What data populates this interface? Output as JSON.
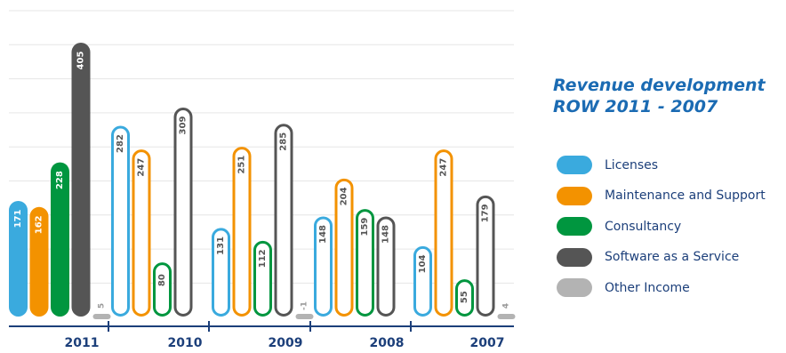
{
  "title": "Revenue development\nROW 2011 - 2007",
  "colors": {
    "licenses": "#3aaade",
    "maintenance": "#f39200",
    "consultancy": "#00963f",
    "saas": "#555555",
    "other": "#b3b3b3",
    "axis": "#1c3f7a",
    "grid": "#e6e6e6"
  },
  "legend": [
    {
      "label": "Licenses",
      "color_key": "licenses"
    },
    {
      "label": "Maintenance and Support",
      "color_key": "maintenance"
    },
    {
      "label": "Consultancy",
      "color_key": "consultancy"
    },
    {
      "label": "Software as a Service",
      "color_key": "saas"
    },
    {
      "label": "Other Income",
      "color_key": "other"
    }
  ],
  "chart_data": {
    "type": "bar",
    "title": "Revenue development ROW 2011 - 2007",
    "categories": [
      "2011",
      "2010",
      "2009",
      "2008",
      "2007"
    ],
    "series": [
      {
        "name": "Licenses",
        "color_key": "licenses",
        "values": [
          171,
          282,
          131,
          148,
          104
        ],
        "filled": [
          true,
          false,
          false,
          false,
          false
        ]
      },
      {
        "name": "Maintenance and Support",
        "color_key": "maintenance",
        "values": [
          162,
          247,
          251,
          204,
          247
        ],
        "filled": [
          true,
          false,
          false,
          false,
          false
        ]
      },
      {
        "name": "Consultancy",
        "color_key": "consultancy",
        "values": [
          228,
          80,
          112,
          159,
          55
        ],
        "filled": [
          true,
          false,
          false,
          false,
          false
        ]
      },
      {
        "name": "Software as a Service",
        "color_key": "saas",
        "values": [
          405,
          309,
          285,
          148,
          179
        ],
        "filled": [
          true,
          false,
          false,
          false,
          false
        ]
      },
      {
        "name": "Other Income",
        "color_key": "other",
        "values": [
          5,
          null,
          -1,
          null,
          4
        ],
        "filled": [
          true,
          false,
          true,
          false,
          true
        ]
      }
    ],
    "ylim": [
      0,
      420
    ],
    "grid": true,
    "legend_position": "right"
  }
}
